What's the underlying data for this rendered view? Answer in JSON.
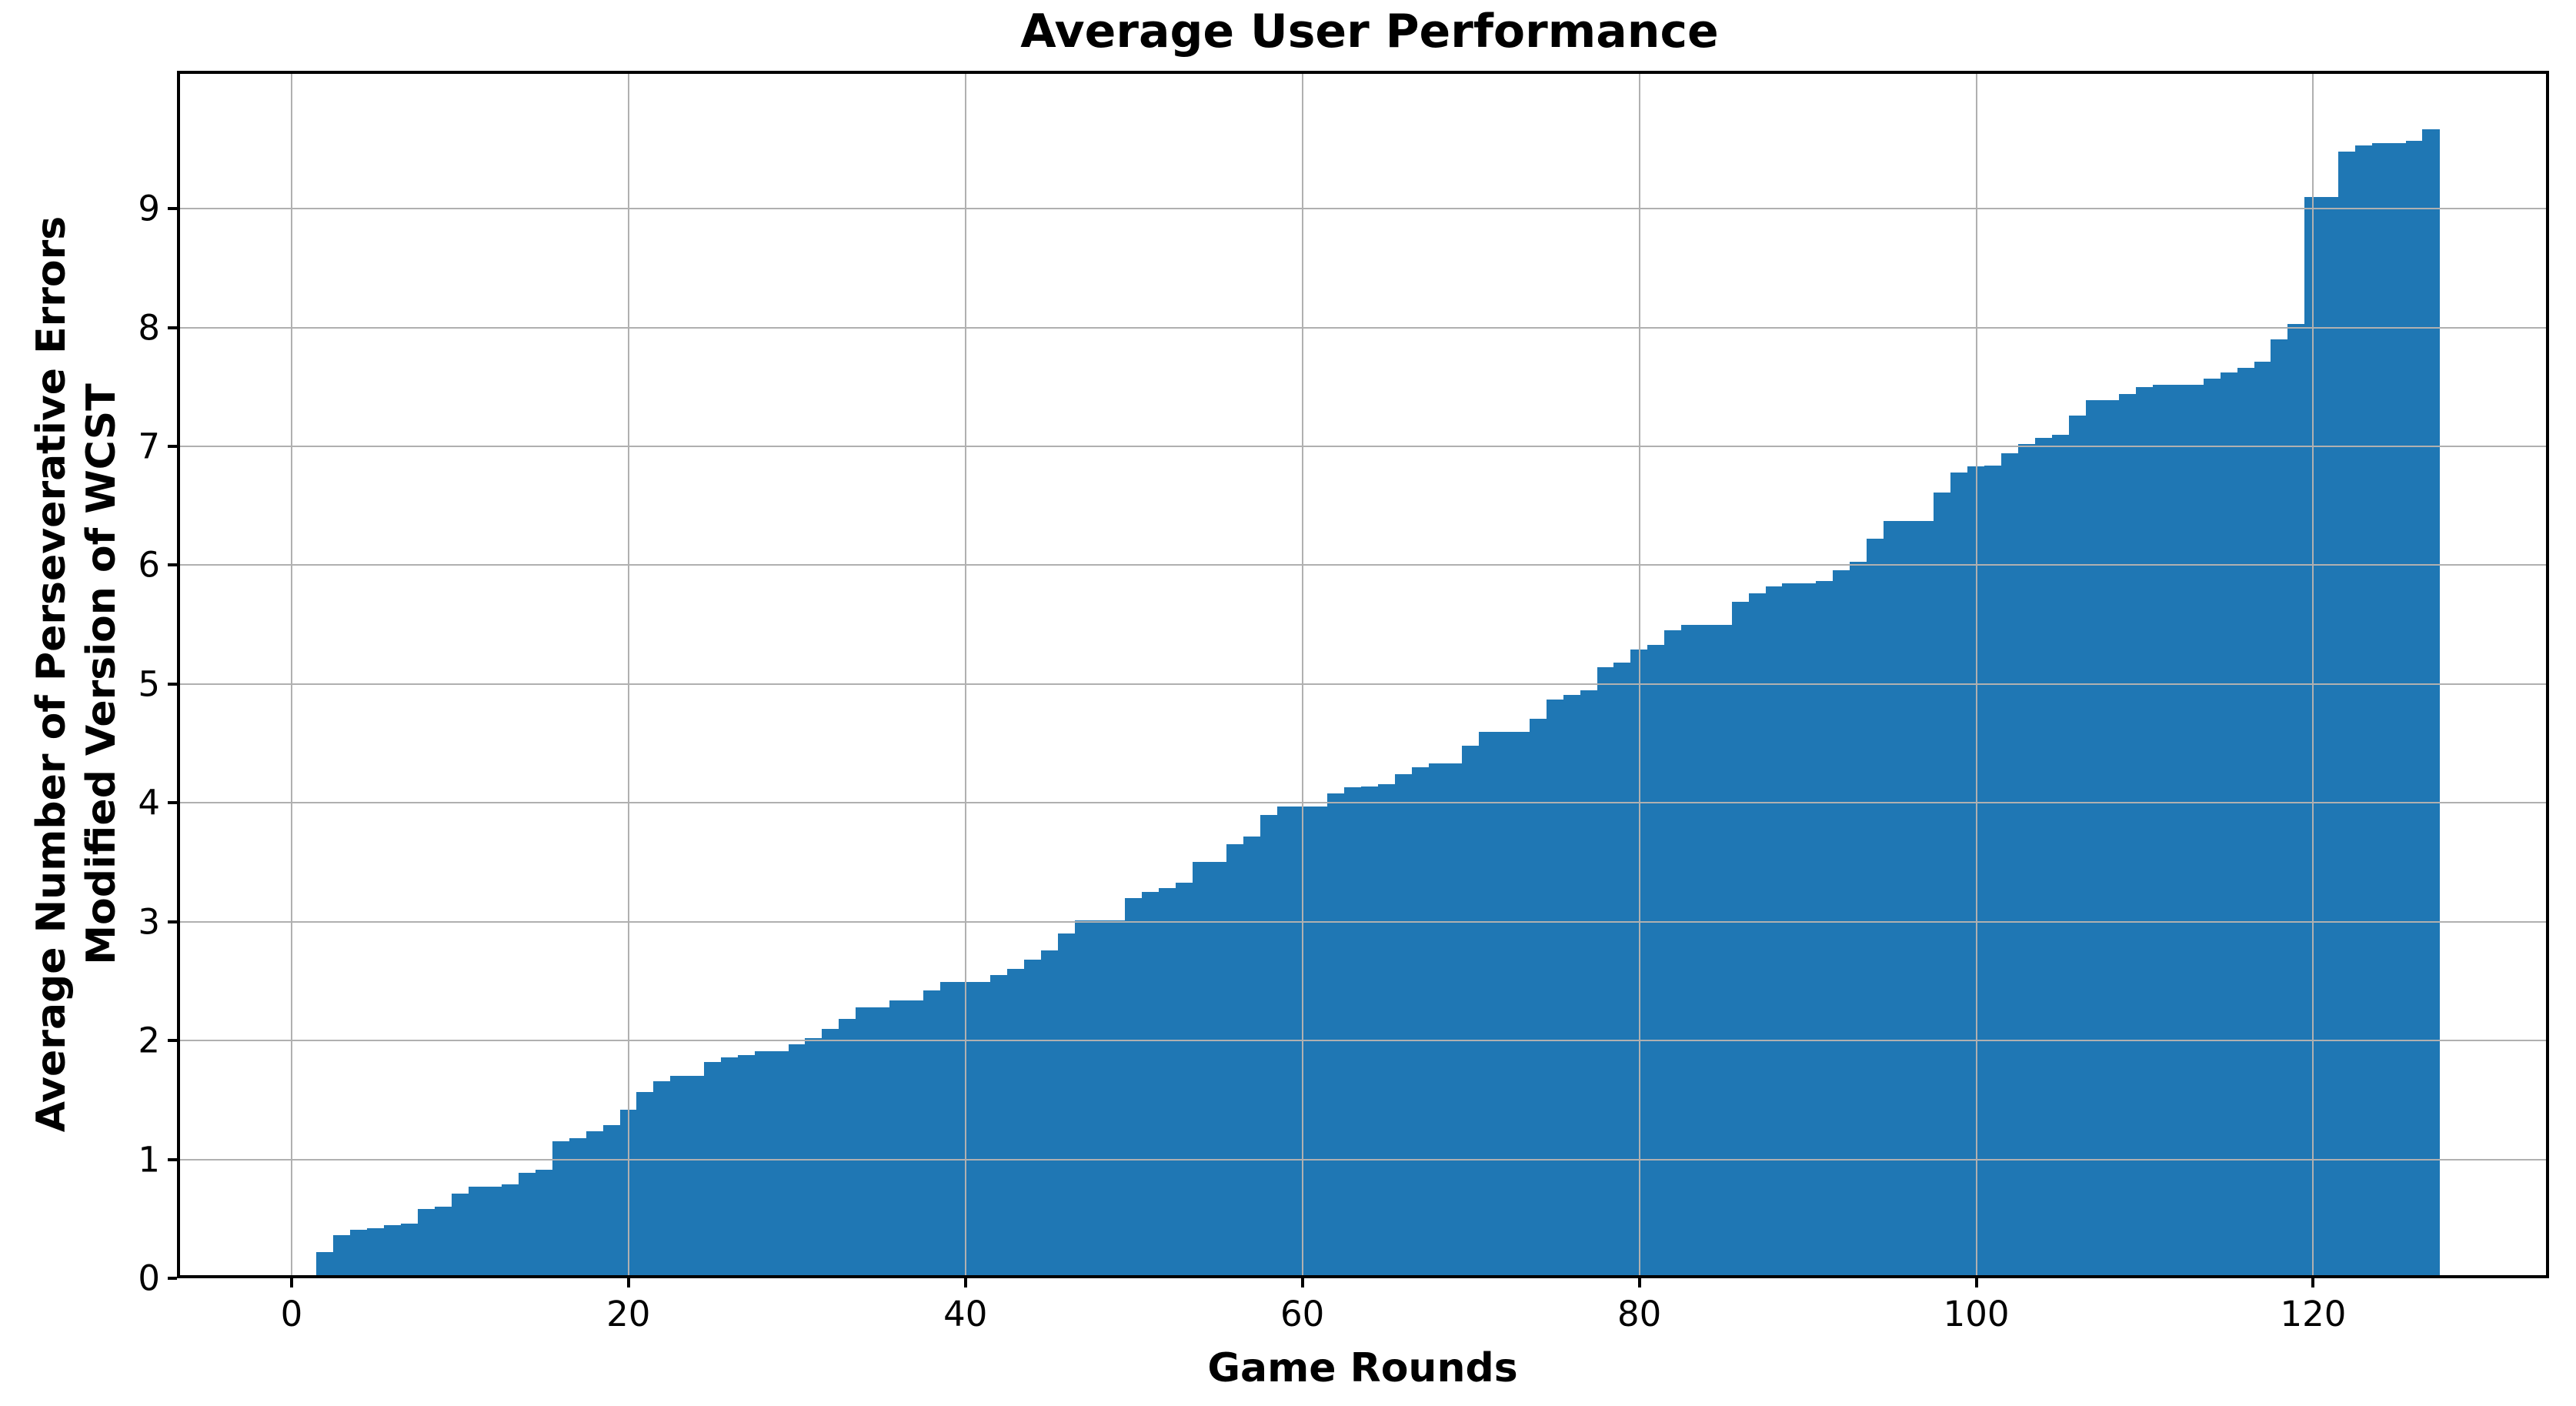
{
  "title": "Average User Performance",
  "axes": {
    "xlabel": "Game Rounds",
    "ylabel_line1": "Average Number of Perseverative Errors",
    "ylabel_line2": "Modified Version of WCST",
    "x_tick_labels": [
      "0",
      "20",
      "40",
      "60",
      "80",
      "100",
      "120"
    ],
    "y_tick_labels": [
      "0",
      "1",
      "2",
      "3",
      "4",
      "5",
      "6",
      "7",
      "8",
      "9"
    ],
    "grid": true,
    "legend": "none"
  },
  "colors": {
    "bar": "#1f77b4",
    "grid": "#b0b0b0",
    "spine": "#000000",
    "background": "#ffffff",
    "text": "#000000"
  },
  "chart_data": {
    "type": "bar",
    "title": "Average User Performance",
    "xlabel": "Game Rounds",
    "ylabel": "Average Number of Perseverative Errors\nModified Version of WCST",
    "bar_width": 1,
    "xlim": [
      -6.8,
      134.0
    ],
    "ylim": [
      0,
      10.16
    ],
    "x_ticks": [
      0,
      20,
      40,
      60,
      80,
      100,
      120
    ],
    "y_ticks": [
      0,
      1,
      2,
      3,
      4,
      5,
      6,
      7,
      8,
      9
    ],
    "x": [
      2,
      3,
      4,
      5,
      6,
      7,
      8,
      9,
      10,
      11,
      12,
      13,
      14,
      15,
      16,
      17,
      18,
      19,
      20,
      21,
      22,
      23,
      24,
      25,
      26,
      27,
      28,
      29,
      30,
      31,
      32,
      33,
      34,
      35,
      36,
      37,
      38,
      39,
      40,
      41,
      42,
      43,
      44,
      45,
      46,
      47,
      48,
      49,
      50,
      51,
      52,
      53,
      54,
      55,
      56,
      57,
      58,
      59,
      60,
      61,
      62,
      63,
      64,
      65,
      66,
      67,
      68,
      69,
      70,
      71,
      72,
      73,
      74,
      75,
      76,
      77,
      78,
      79,
      80,
      81,
      82,
      83,
      84,
      85,
      86,
      87,
      88,
      89,
      90,
      91,
      92,
      93,
      94,
      95,
      96,
      97,
      98,
      99,
      100,
      101,
      102,
      103,
      104,
      105,
      106,
      107,
      108,
      109,
      110,
      111,
      112,
      113,
      114,
      115,
      116,
      117,
      118,
      119,
      120,
      121,
      122,
      123,
      124,
      125,
      126,
      127
    ],
    "values": [
      0.22,
      0.36,
      0.41,
      0.42,
      0.45,
      0.46,
      0.58,
      0.6,
      0.71,
      0.77,
      0.77,
      0.79,
      0.89,
      0.91,
      1.15,
      1.18,
      1.24,
      1.29,
      1.42,
      1.57,
      1.66,
      1.7,
      1.7,
      1.82,
      1.86,
      1.88,
      1.91,
      1.91,
      1.97,
      2.02,
      2.1,
      2.18,
      2.28,
      2.28,
      2.34,
      2.34,
      2.42,
      2.49,
      2.49,
      2.49,
      2.55,
      2.6,
      2.68,
      2.76,
      2.9,
      3.01,
      3.01,
      3.01,
      3.2,
      3.25,
      3.28,
      3.33,
      3.5,
      3.5,
      3.65,
      3.72,
      3.9,
      3.97,
      3.97,
      3.97,
      4.08,
      4.13,
      4.14,
      4.16,
      4.24,
      4.3,
      4.33,
      4.33,
      4.48,
      4.6,
      4.6,
      4.6,
      4.71,
      4.87,
      4.91,
      4.95,
      5.14,
      5.18,
      5.29,
      5.33,
      5.45,
      5.5,
      5.5,
      5.5,
      5.69,
      5.76,
      5.82,
      5.85,
      5.85,
      5.87,
      5.96,
      6.03,
      6.22,
      6.37,
      6.37,
      6.37,
      6.61,
      6.78,
      6.83,
      6.84,
      6.94,
      7.02,
      7.07,
      7.1,
      7.26,
      7.39,
      7.39,
      7.44,
      7.5,
      7.52,
      7.52,
      7.52,
      7.57,
      7.62,
      7.66,
      7.71,
      7.9,
      8.03,
      9.1,
      9.1,
      9.48,
      9.53,
      9.55,
      9.55,
      9.57,
      9.67
    ]
  }
}
